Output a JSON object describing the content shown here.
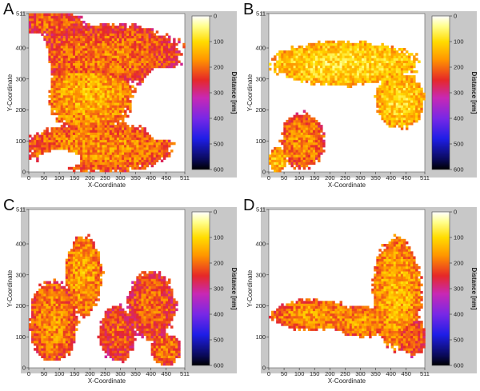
{
  "chart_data": [
    {
      "panel": "A",
      "type": "heatmap",
      "xlabel": "X-Coordinate",
      "ylabel": "Y-Coordinate",
      "xticks": [
        0,
        50,
        100,
        150,
        200,
        250,
        300,
        350,
        400,
        450,
        511
      ],
      "yticks": [
        0,
        100,
        200,
        300,
        400,
        511
      ],
      "xlim": [
        0,
        511
      ],
      "ylim": [
        0,
        511
      ],
      "colorbar": {
        "label": "Distance [nm]",
        "ticks": [
          0,
          100,
          200,
          300,
          400,
          500,
          600
        ],
        "range": [
          0,
          600
        ]
      },
      "blobs": [
        {
          "cx": 250,
          "cy": 380,
          "rx": 250,
          "ry": 100,
          "val": 190
        },
        {
          "cx": 200,
          "cy": 250,
          "rx": 140,
          "ry": 120,
          "val": 140
        },
        {
          "cx": 230,
          "cy": 80,
          "rx": 240,
          "ry": 80,
          "val": 170
        },
        {
          "cx": 80,
          "cy": 480,
          "rx": 100,
          "ry": 40,
          "val": 200
        }
      ],
      "holes": [
        {
          "cx": 30,
          "cy": 310,
          "rx": 40,
          "ry": 140
        },
        {
          "cx": 440,
          "cy": 220,
          "rx": 80,
          "ry": 120
        },
        {
          "cx": 100,
          "cy": 40,
          "rx": 70,
          "ry": 30
        }
      ]
    },
    {
      "panel": "B",
      "type": "heatmap",
      "xlabel": "X-Coordinate",
      "ylabel": "Y-Coordinate",
      "xticks": [
        0,
        50,
        100,
        150,
        200,
        250,
        300,
        350,
        400,
        450,
        511
      ],
      "yticks": [
        0,
        100,
        200,
        300,
        400,
        511
      ],
      "xlim": [
        0,
        511
      ],
      "ylim": [
        0,
        511
      ],
      "colorbar": {
        "label": "Distance [nm]",
        "ticks": [
          0,
          100,
          200,
          300,
          400,
          500,
          600
        ],
        "range": [
          0,
          600
        ]
      },
      "blobs": [
        {
          "cx": 250,
          "cy": 350,
          "rx": 240,
          "ry": 70,
          "val": 90
        },
        {
          "cx": 430,
          "cy": 230,
          "rx": 80,
          "ry": 90,
          "val": 100
        },
        {
          "cx": 110,
          "cy": 100,
          "rx": 70,
          "ry": 90,
          "val": 170
        },
        {
          "cx": 30,
          "cy": 40,
          "rx": 30,
          "ry": 40,
          "val": 120
        }
      ],
      "holes": []
    },
    {
      "panel": "C",
      "type": "heatmap",
      "xlabel": "X-Coordinate",
      "ylabel": "Y-Coordinate",
      "xticks": [
        0,
        50,
        100,
        150,
        200,
        250,
        300,
        350,
        400,
        450,
        511
      ],
      "yticks": [
        0,
        100,
        200,
        300,
        400,
        511
      ],
      "xlim": [
        0,
        511
      ],
      "ylim": [
        0,
        511
      ],
      "colorbar": {
        "label": "Distance [nm]",
        "ticks": [
          0,
          100,
          200,
          300,
          400,
          500,
          600
        ],
        "range": [
          0,
          600
        ]
      },
      "blobs": [
        {
          "cx": 80,
          "cy": 150,
          "rx": 80,
          "ry": 130,
          "val": 170
        },
        {
          "cx": 180,
          "cy": 300,
          "rx": 60,
          "ry": 130,
          "val": 150
        },
        {
          "cx": 400,
          "cy": 200,
          "rx": 80,
          "ry": 110,
          "val": 200
        },
        {
          "cx": 290,
          "cy": 110,
          "rx": 60,
          "ry": 90,
          "val": 210
        },
        {
          "cx": 450,
          "cy": 60,
          "rx": 50,
          "ry": 50,
          "val": 180
        }
      ],
      "holes": []
    },
    {
      "panel": "D",
      "type": "heatmap",
      "xlabel": "X-Coordinate",
      "ylabel": "Y-Coordinate",
      "xticks": [
        0,
        50,
        100,
        150,
        200,
        250,
        300,
        350,
        400,
        450,
        511
      ],
      "yticks": [
        0,
        100,
        200,
        300,
        400,
        511
      ],
      "xlim": [
        0,
        511
      ],
      "ylim": [
        0,
        511
      ],
      "colorbar": {
        "label": "Distance [nm]",
        "ticks": [
          0,
          100,
          200,
          300,
          400,
          500,
          600
        ],
        "range": [
          0,
          600
        ]
      },
      "blobs": [
        {
          "cx": 150,
          "cy": 170,
          "rx": 140,
          "ry": 50,
          "val": 160
        },
        {
          "cx": 300,
          "cy": 150,
          "rx": 90,
          "ry": 50,
          "val": 160
        },
        {
          "cx": 420,
          "cy": 240,
          "rx": 80,
          "ry": 180,
          "val": 140
        },
        {
          "cx": 470,
          "cy": 100,
          "rx": 50,
          "ry": 60,
          "val": 200
        }
      ],
      "holes": []
    }
  ]
}
